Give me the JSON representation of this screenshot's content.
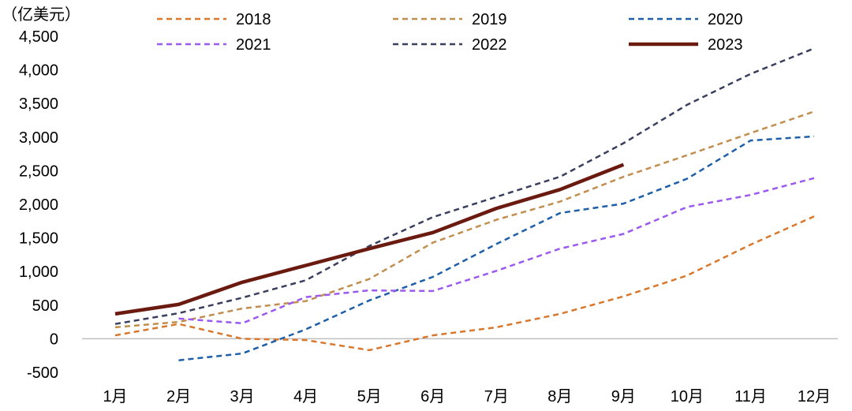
{
  "chart_data": {
    "type": "line",
    "title": "",
    "xlabel": "",
    "ylabel": "",
    "unit_label": "（亿美元）",
    "categories": [
      "1月",
      "2月",
      "3月",
      "4月",
      "5月",
      "6月",
      "7月",
      "8月",
      "9月",
      "10月",
      "11月",
      "12月"
    ],
    "ylim": [
      -500,
      4500
    ],
    "yticks": [
      4500,
      4000,
      3500,
      3000,
      2500,
      2000,
      1500,
      1000,
      500,
      0,
      -500
    ],
    "ytick_labels": [
      "4,500",
      "4,000",
      "3,500",
      "3,000",
      "2,500",
      "2,000",
      "1,500",
      "1,000",
      "500",
      "0",
      "-500"
    ],
    "grid": false,
    "legend_position": "top",
    "series": [
      {
        "name": "2018",
        "color": "#D9782D",
        "dashed": true,
        "values": [
          50,
          220,
          0,
          -20,
          -170,
          50,
          170,
          370,
          630,
          940,
          1400,
          1820
        ]
      },
      {
        "name": "2019",
        "color": "#C28E4F",
        "dashed": true,
        "values": [
          170,
          250,
          450,
          560,
          890,
          1430,
          1770,
          2040,
          2410,
          2730,
          3060,
          3380
        ]
      },
      {
        "name": "2020",
        "color": "#1F5FA8",
        "dashed": true,
        "values": [
          null,
          -320,
          -220,
          140,
          570,
          920,
          1410,
          1870,
          2010,
          2380,
          2950,
          3010
        ]
      },
      {
        "name": "2021",
        "color": "#9B59F0",
        "dashed": true,
        "values": [
          null,
          300,
          230,
          620,
          720,
          710,
          1010,
          1340,
          1560,
          1960,
          2140,
          2390
        ]
      },
      {
        "name": "2022",
        "color": "#3A3F5E",
        "dashed": true,
        "values": [
          220,
          380,
          610,
          870,
          1380,
          1810,
          2110,
          2410,
          2910,
          3480,
          3940,
          4320
        ]
      },
      {
        "name": "2023",
        "color": "#6B1A10",
        "dashed": false,
        "values": [
          370,
          510,
          840,
          1090,
          1340,
          1580,
          1940,
          2220,
          2590,
          null,
          null,
          null
        ]
      }
    ]
  }
}
